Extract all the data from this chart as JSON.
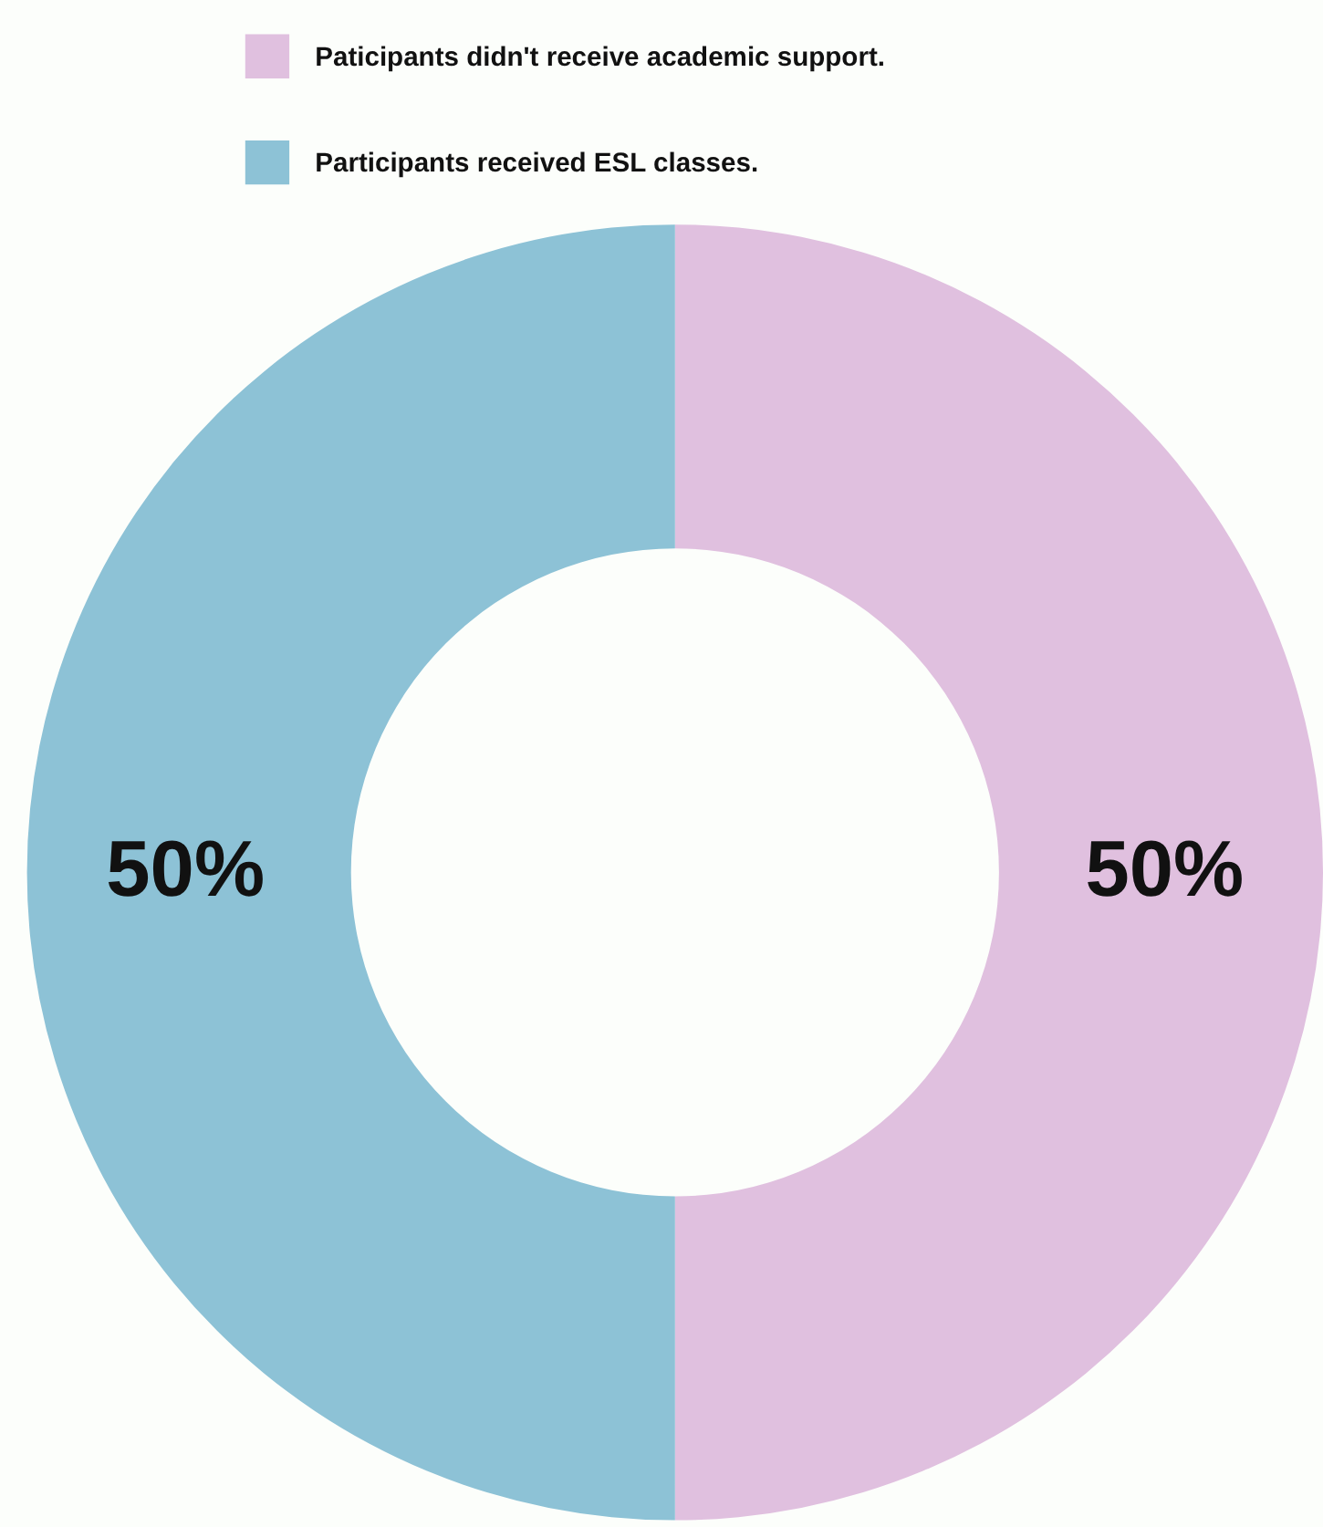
{
  "chart_data": {
    "type": "donut",
    "categories": [
      "Paticipants didn't receive academic support.",
      "Participants received ESL classes."
    ],
    "values": [
      50,
      50
    ],
    "colors": [
      "#e0c0df",
      "#8dc2d6"
    ],
    "value_labels": [
      "50%",
      "50%"
    ],
    "legend": "top"
  }
}
